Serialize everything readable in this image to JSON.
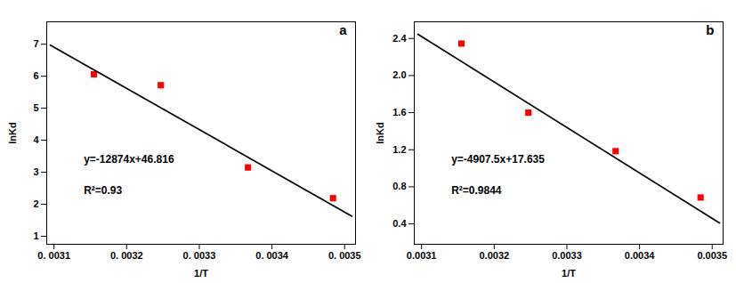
{
  "chart_data": [
    {
      "type": "scatter",
      "title": "a",
      "xlabel": "1/T",
      "ylabel": "lnKd",
      "annotations": [
        "y=-12874x+46.816",
        "R²=0.93"
      ],
      "series": [
        {
          "type": "scatter",
          "x": [
            0.003155,
            0.003247,
            0.003367,
            0.003484
          ],
          "values": [
            6.06,
            5.72,
            3.15,
            2.19
          ],
          "color": "#FF0000",
          "marker": "square"
        },
        {
          "type": "line",
          "x": [
            0.003095,
            0.00351
          ],
          "values": [
            6.97097,
            1.62826
          ],
          "color": "#000000"
        }
      ],
      "xlim": [
        0.00309,
        0.003515
      ],
      "xticks": [
        {
          "value": 0.0031,
          "label": "0. 0031"
        },
        {
          "value": 0.0032,
          "label": "0. 0032"
        },
        {
          "value": 0.0033,
          "label": "0. 0033"
        },
        {
          "value": 0.0034,
          "label": "0. 0034"
        },
        {
          "value": 0.0035,
          "label": "0. 0035"
        }
      ],
      "ylim": [
        0.75,
        7.7
      ],
      "yticks": [
        1,
        2,
        3,
        4,
        5,
        6,
        7
      ],
      "grid": false
    },
    {
      "type": "scatter",
      "title": "b",
      "xlabel": "1/T",
      "ylabel": "lnKd",
      "annotations": [
        "y=-4907.5x+17.635",
        "R²=0.9844"
      ],
      "series": [
        {
          "type": "scatter",
          "x": [
            0.003155,
            0.003247,
            0.003367,
            0.003484
          ],
          "values": [
            2.345,
            1.6,
            1.185,
            0.685
          ],
          "color": "#FF0000",
          "marker": "square"
        },
        {
          "type": "line",
          "x": [
            0.003095,
            0.00351
          ],
          "values": [
            2.4462875,
            0.409675
          ],
          "color": "#000000"
        }
      ],
      "xlim": [
        0.00309,
        0.003515
      ],
      "xticks": [
        0.0031,
        0.0032,
        0.0033,
        0.0034,
        0.0035
      ],
      "ylim": [
        0.18,
        2.58
      ],
      "yticks": [
        0.4,
        0.8,
        1.2,
        1.6,
        {
          "value": 2.0,
          "label": "2.0"
        },
        2.4
      ],
      "grid": false
    }
  ]
}
